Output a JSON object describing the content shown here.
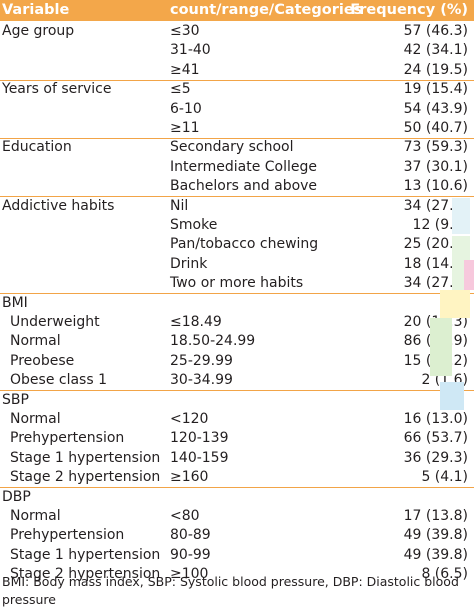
{
  "header": {
    "variable": "Variable",
    "categories": "count/range/Categories",
    "frequency": "Frequency (%)"
  },
  "rows": [
    {
      "variable": "Age group",
      "category": "≤30",
      "frequency": "57 (46.3)",
      "sub": false
    },
    {
      "variable": "",
      "category": "31-40",
      "frequency": "42 (34.1)",
      "sub": false
    },
    {
      "variable": "",
      "category": "≥41",
      "frequency": "24 (19.5)",
      "sub": false
    },
    {
      "variable": "Years of service",
      "category": "≤5",
      "frequency": "19 (15.4)",
      "sub": false
    },
    {
      "variable": "",
      "category": "6-10",
      "frequency": "54 (43.9)",
      "sub": false
    },
    {
      "variable": "",
      "category": "≥11",
      "frequency": "50 (40.7)",
      "sub": false
    },
    {
      "variable": "Education",
      "category": "Secondary school",
      "frequency": "73 (59.3)",
      "sub": false
    },
    {
      "variable": "",
      "category": "Intermediate College",
      "frequency": "37 (30.1)",
      "sub": false
    },
    {
      "variable": "",
      "category": "Bachelors and above",
      "frequency": "13 (10.6)",
      "sub": false
    },
    {
      "variable": "Addictive habits",
      "category": "Nil",
      "frequency": "34 (27.6)",
      "sub": false
    },
    {
      "variable": "",
      "category": "Smoke",
      "frequency": "12 (9.8)",
      "sub": false
    },
    {
      "variable": "",
      "category": "Pan/tobacco chewing",
      "frequency": "25 (20.3)",
      "sub": false
    },
    {
      "variable": "",
      "category": "Drink",
      "frequency": "18 (14.6)",
      "sub": false
    },
    {
      "variable": "",
      "category": "Two or more habits",
      "frequency": "34 (27.6)",
      "sub": false
    },
    {
      "variable": "BMI",
      "category": "",
      "frequency": "",
      "sub": false
    },
    {
      "variable": "Underweight",
      "category": "≤18.49",
      "frequency": "20 (16.3)",
      "sub": true
    },
    {
      "variable": "Normal",
      "category": "18.50-24.99",
      "frequency": "86 (69.9)",
      "sub": true
    },
    {
      "variable": "Preobese",
      "category": "25-29.99",
      "frequency": "15 (12.2)",
      "sub": true
    },
    {
      "variable": "Obese class 1",
      "category": "30-34.99",
      "frequency": "2 (1.6)",
      "sub": true
    },
    {
      "variable": "SBP",
      "category": "",
      "frequency": "",
      "sub": false
    },
    {
      "variable": "Normal",
      "category": "<120",
      "frequency": "16 (13.0)",
      "sub": true
    },
    {
      "variable": "Prehypertension",
      "category": "120-139",
      "frequency": "66 (53.7)",
      "sub": true
    },
    {
      "variable": "Stage 1 hypertension",
      "category": "140-159",
      "frequency": "36 (29.3)",
      "sub": true
    },
    {
      "variable": "Stage 2 hypertension",
      "category": "≥160",
      "frequency": "5 (4.1)",
      "sub": true
    },
    {
      "variable": "DBP",
      "category": "",
      "frequency": "",
      "sub": false
    },
    {
      "variable": "Normal",
      "category": "<80",
      "frequency": "17 (13.8)",
      "sub": true
    },
    {
      "variable": "Prehypertension",
      "category": "80-89",
      "frequency": "49 (39.8)",
      "sub": true
    },
    {
      "variable": "Stage 1 hypertension",
      "category": "90-99",
      "frequency": "49 (39.8)",
      "sub": true
    },
    {
      "variable": "Stage 2 hypertension",
      "category": "≥100",
      "frequency": "8 (6.5)",
      "sub": true
    }
  ],
  "footnote": "BMI: Body mass index, SBP: Systolic blood pressure, DBP: Diastolic blood pressure",
  "colors": {
    "header_bg": "#f3a74a",
    "separator": "#f2a447",
    "text": "#231f20"
  }
}
